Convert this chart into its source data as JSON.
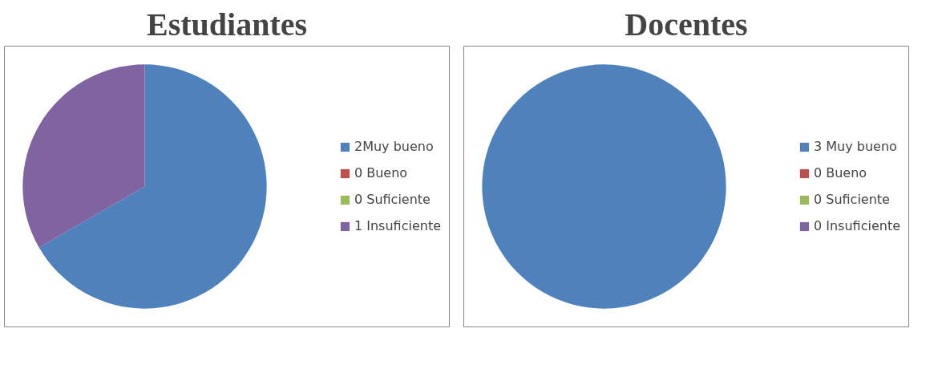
{
  "chart_data": [
    {
      "type": "pie",
      "title": "Estudiantes",
      "categories": [
        "2Muy bueno",
        "0 Bueno",
        "0 Suficiente",
        "1 Insuficiente"
      ],
      "values": [
        2,
        0,
        0,
        1
      ],
      "colors": [
        "#4f81bd",
        "#c0504d",
        "#9bbb59",
        "#8064a2"
      ],
      "legend": "right"
    },
    {
      "type": "pie",
      "title": "Docentes",
      "categories": [
        "3 Muy bueno",
        "0 Bueno",
        "0 Suficiente",
        "0 Insuficiente"
      ],
      "values": [
        3,
        0,
        0,
        0
      ],
      "colors": [
        "#4f81bd",
        "#c0504d",
        "#9bbb59",
        "#8064a2"
      ],
      "legend": "right"
    }
  ]
}
